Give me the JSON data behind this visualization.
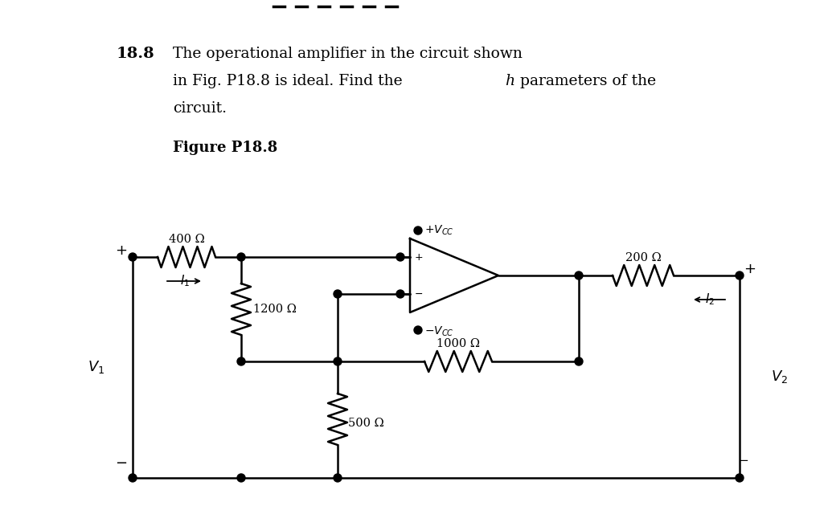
{
  "bg_color": "#ffffff",
  "text_color": "#000000",
  "title_num": "18.8",
  "line1": "The operational amplifier in the circuit shown",
  "line2_pre": "in Fig. P18.8 is ideal. Find the ",
  "line2_h": "h",
  "line2_post": " parameters of the",
  "line3": "circuit.",
  "fig_label": "Figure P18.8",
  "R1_label": "400 Ω",
  "R2_label": "1200 Ω",
  "R3_label": "500 Ω",
  "R4_label": "1000 Ω",
  "R5_label": "200 Ω",
  "V1_label": "$V_1$",
  "V2_label": "$V_2$",
  "I1_label": "$I_1$",
  "I2_label": "$I_2$",
  "VCC_pos": "$+V_{CC}$",
  "VCC_neg": "$-V_{CC}$"
}
